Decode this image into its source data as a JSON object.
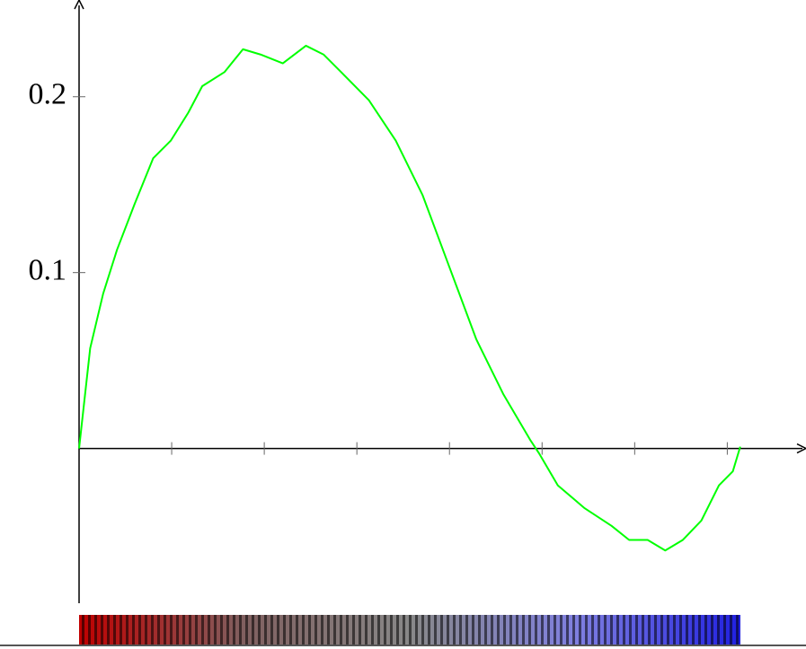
{
  "chart_data": {
    "type": "line",
    "x": [
      0,
      0.12,
      0.26,
      0.41,
      0.6,
      0.8,
      0.99,
      1.18,
      1.33,
      1.57,
      1.77,
      1.96,
      2.2,
      2.45,
      2.64,
      2.83,
      3.13,
      3.42,
      3.71,
      4.0,
      4.29,
      4.58,
      4.87,
      4.97,
      5.17,
      5.46,
      5.75,
      5.94,
      6.14,
      6.33,
      6.52,
      6.72,
      6.91,
      7.06,
      7.14
    ],
    "values": [
      0,
      0.057,
      0.088,
      0.113,
      0.139,
      0.165,
      0.175,
      0.191,
      0.206,
      0.214,
      0.227,
      0.224,
      0.219,
      0.229,
      0.224,
      0.214,
      0.198,
      0.175,
      0.144,
      0.103,
      0.062,
      0.031,
      0.005,
      -0.003,
      -0.021,
      -0.034,
      -0.044,
      -0.052,
      -0.052,
      -0.058,
      -0.052,
      -0.041,
      -0.021,
      -0.013,
      0.001
    ],
    "color": "#00ff00",
    "xlim": [
      0,
      7.85
    ],
    "xticks": [
      1,
      2,
      3,
      4,
      5,
      6,
      7
    ],
    "ylim": [
      -0.088,
      0.255
    ],
    "yticks": [
      0.1,
      0.2
    ]
  }
}
